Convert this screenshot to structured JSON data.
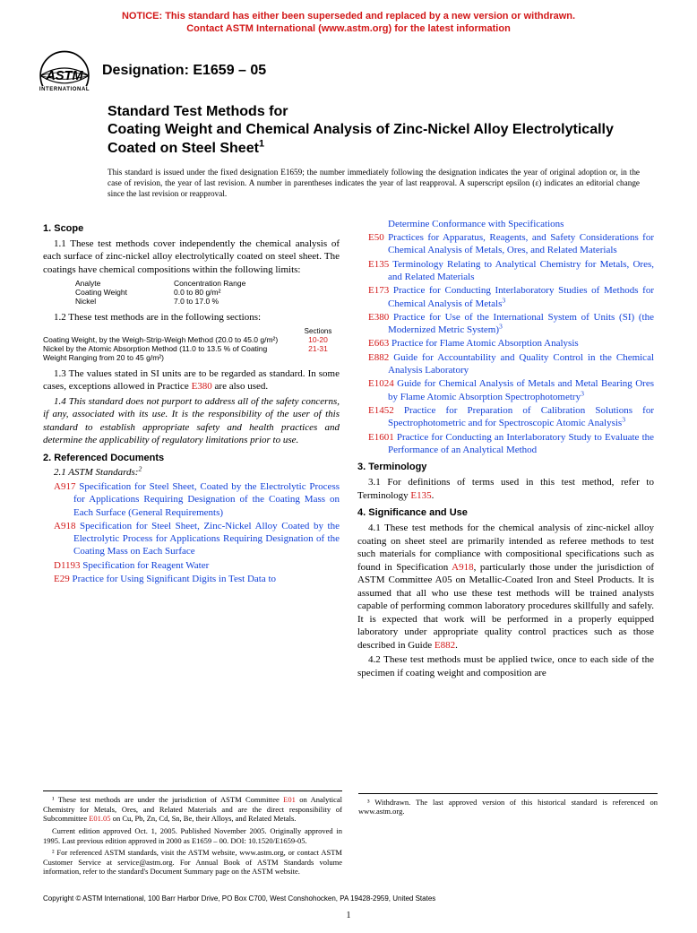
{
  "colors": {
    "notice_red": "#d21818",
    "link_blue": "#1040d8",
    "text": "#000000",
    "background": "#ffffff"
  },
  "notice": {
    "line1": "NOTICE: This standard has either been superseded and replaced by a new version or withdrawn.",
    "line2": "Contact ASTM International (www.astm.org) for the latest information"
  },
  "logo_label": "INTERNATIONAL",
  "designation_label": "Designation: E1659 – 05",
  "title": {
    "line1": "Standard Test Methods for",
    "line2": "Coating Weight and Chemical Analysis of Zinc-Nickel Alloy Electrolytically Coated on Steel Sheet"
  },
  "title_sup": "1",
  "issued_note": "This standard is issued under the fixed designation E1659; the number immediately following the designation indicates the year of original adoption or, in the case of revision, the year of last revision. A number in parentheses indicates the year of last reapproval. A superscript epsilon (ε) indicates an editorial change since the last revision or reapproval.",
  "scope": {
    "head": "1. Scope",
    "p1": "1.1 These test methods cover independently the chemical analysis of each surface of zinc-nickel alloy electrolytically coated on steel sheet. The coatings have chemical compositions within the following limits:",
    "analyte_table": {
      "col1": "Analyte",
      "col2": "Concentration Range",
      "rows": [
        [
          "Coating Weight",
          "0.0 to 80 g/m²"
        ],
        [
          "Nickel",
          "7.0 to 17.0 %"
        ]
      ]
    },
    "p2": "1.2 These test methods are in the following sections:",
    "sections_table": {
      "head": "Sections",
      "rows": [
        {
          "label": "Coating Weight, by the Weigh-Strip-Weigh Method (20.0 to 45.0 g/m²)",
          "val": "10-20"
        },
        {
          "label": "Nickel by the Atomic Absorption Method (11.0 to 13.5 % of Coating Weight Ranging from 20 to 45 g/m²)",
          "val": "21-31"
        }
      ]
    },
    "p3a": "1.3 The values stated in SI units are to be regarded as standard. In some cases, exceptions allowed in Practice ",
    "p3_link": "E380",
    "p3b": " are also used.",
    "p4": "1.4 This standard does not purport to address all of the safety concerns, if any, associated with its use. It is the responsibility of the user of this standard to establish appropriate safety and health practices and determine the applicability of regulatory limitations prior to use."
  },
  "refs": {
    "head": "2. Referenced Documents",
    "sub": "2.1 ASTM Standards:",
    "sub_sup": "2",
    "items_left": [
      {
        "code": "A917",
        "text": "Specification for Steel Sheet, Coated by the Electrolytic Process for Applications Requiring Designation of the Coating Mass on Each Surface (General Requirements)"
      },
      {
        "code": "A918",
        "text": "Specification for Steel Sheet, Zinc-Nickel Alloy Coated by the Electrolytic Process for Applications Requiring Designation of the Coating Mass on Each Surface"
      },
      {
        "code": "D1193",
        "text": "Specification for Reagent Water"
      },
      {
        "code": "E29",
        "text": "Practice for Using Significant Digits in Test Data to"
      }
    ],
    "items_right": [
      {
        "code": "",
        "text": "Determine Conformance with Specifications"
      },
      {
        "code": "E50",
        "text": "Practices for Apparatus, Reagents, and Safety Considerations for Chemical Analysis of Metals, Ores, and Related Materials"
      },
      {
        "code": "E135",
        "text": "Terminology Relating to Analytical Chemistry for Metals, Ores, and Related Materials"
      },
      {
        "code": "E173",
        "text": "Practice for Conducting Interlaboratory Studies of Methods for Chemical Analysis of Metals",
        "sup": "3"
      },
      {
        "code": "E380",
        "text": "Practice for Use of the International System of Units (SI) (the Modernized Metric System)",
        "sup": "3"
      },
      {
        "code": "E663",
        "text": "Practice for Flame Atomic Absorption Analysis"
      },
      {
        "code": "E882",
        "text": "Guide for Accountability and Quality Control in the Chemical Analysis Laboratory"
      },
      {
        "code": "E1024",
        "text": "Guide for Chemical Analysis of Metals and Metal Bearing Ores by Flame Atomic Absorption Spectrophotometry",
        "sup": "3"
      },
      {
        "code": "E1452",
        "text": "Practice for Preparation of Calibration Solutions for Spectrophotometric and for Spectroscopic Atomic Analysis",
        "sup": "3"
      },
      {
        "code": "E1601",
        "text": "Practice for Conducting an Interlaboratory Study to Evaluate the Performance of an Analytical Method"
      }
    ]
  },
  "terminology": {
    "head": "3. Terminology",
    "p1a": "3.1 For definitions of terms used in this test method, refer to Terminology ",
    "p1_link": "E135",
    "p1b": "."
  },
  "significance": {
    "head": "4. Significance and Use",
    "p1a": "4.1 These test methods for the chemical analysis of zinc-nickel alloy coating on sheet steel are primarily intended as referee methods to test such materials for compliance with compositional specifications such as found in Specification ",
    "p1_link1": "A918",
    "p1b": ", particularly those under the jurisdiction of ASTM Committee A05 on Metallic-Coated Iron and Steel Products. It is assumed that all who use these test methods will be trained analysts capable of performing common laboratory procedures skillfully and safely. It is expected that work will be performed in a properly equipped laboratory under appropriate quality control practices such as those described in Guide ",
    "p1_link2": "E882",
    "p1c": ".",
    "p2": "4.2 These test methods must be applied twice, once to each side of the specimen if coating weight and composition are"
  },
  "footnotes_left": {
    "f1a": "¹ These test methods are under the jurisdiction of ASTM Committee ",
    "f1_link1": "E01",
    "f1b": " on Analytical Chemistry for Metals, Ores, and Related Materials and are the direct responsibility of Subcommittee ",
    "f1_link2": "E01.05",
    "f1c": " on Cu, Pb, Zn, Cd, Sn, Be, their Alloys, and Related Metals.",
    "f1d": "Current edition approved Oct. 1, 2005. Published November 2005. Originally approved in 1995. Last previous edition approved in 2000 as E1659 – 00. DOI: 10.1520/E1659-05.",
    "f2": "² For referenced ASTM standards, visit the ASTM website, www.astm.org, or contact ASTM Customer Service at service@astm.org. For Annual Book of ASTM Standards volume information, refer to the standard's Document Summary page on the ASTM website."
  },
  "footnotes_right": {
    "f3": "³ Withdrawn. The last approved version of this historical standard is referenced on www.astm.org."
  },
  "copyright": "Copyright © ASTM International, 100 Barr Harbor Drive, PO Box C700, West Conshohocken, PA 19428-2959, United States",
  "page_number": "1"
}
